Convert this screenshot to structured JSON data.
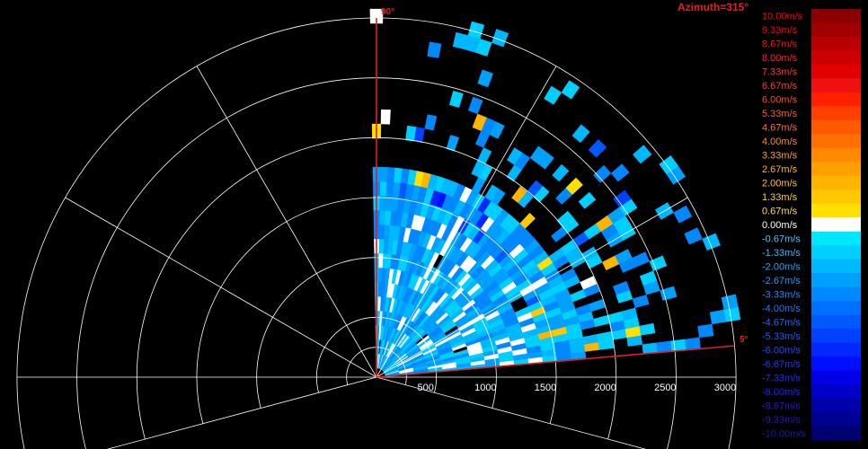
{
  "title": "Azimuth=315°",
  "colors": {
    "background": "#000000",
    "grid": "#ffffff",
    "scan_edge": "#e02020",
    "title": "#e02020"
  },
  "chart_data": {
    "type": "heatmap",
    "description_type": "polar radar velocity (RHI) scan",
    "range_ticks": [
      "500",
      "1000",
      "1500",
      "2000",
      "2500",
      "3000"
    ],
    "range_max": 3000,
    "scan_edges": {
      "upper_label": "90°",
      "lower_label": "5°",
      "upper_deg": 90,
      "lower_deg": 5
    },
    "colorbar": {
      "labels": [
        "10.00m/s",
        "9.33m/s",
        "8.67m/s",
        "8.00m/s",
        "7.33m/s",
        "6.67m/s",
        "6.00m/s",
        "5.33m/s",
        "4.67m/s",
        "4.00m/s",
        "3.33m/s",
        "2.67m/s",
        "2.00m/s",
        "1.33m/s",
        "0.67m/s",
        "0.00m/s",
        "-0.67m/s",
        "-1.33m/s",
        "-2.00m/s",
        "-2.67m/s",
        "-3.33m/s",
        "-4.00m/s",
        "-4.67m/s",
        "-5.33m/s",
        "-6.00m/s",
        "-6.67m/s",
        "-7.33m/s",
        "-8.00m/s",
        "-8.67m/s",
        "-9.33m/s",
        "-10.00m/s"
      ],
      "colors": [
        "#8b0000",
        "#a00000",
        "#b80000",
        "#cc0000",
        "#e00000",
        "#f01010",
        "#ff2000",
        "#ff4000",
        "#ff5a00",
        "#ff7000",
        "#ff8a00",
        "#ffa000",
        "#ffb400",
        "#ffc800",
        "#ffe000",
        "#ffffff",
        "#00e8ff",
        "#00d0ff",
        "#00b8ff",
        "#00a0ff",
        "#0088ff",
        "#0070ff",
        "#0058ff",
        "#0040ff",
        "#0028ff",
        "#0010ff",
        "#0000e8",
        "#0000c8",
        "#0000a8",
        "#000090",
        "#000070"
      ],
      "label_colors": [
        "#ff0000",
        "#ff0000",
        "#ff1010",
        "#ff2020",
        "#ff3030",
        "#ff3a20",
        "#ff4a20",
        "#ff5a20",
        "#ff7020",
        "#ff8a20",
        "#ffa020",
        "#ffb020",
        "#ffc020",
        "#ffd030",
        "#ffe040",
        "#ffffff",
        "#40c8ff",
        "#30b8ff",
        "#20a8ff",
        "#2098ff",
        "#2088ff",
        "#2078ff",
        "#2068ff",
        "#2058ff",
        "#2048ff",
        "#2038ff",
        "#2028ff",
        "#2020ff",
        "#2018e0",
        "#2018c0",
        "#2018a0"
      ]
    }
  }
}
